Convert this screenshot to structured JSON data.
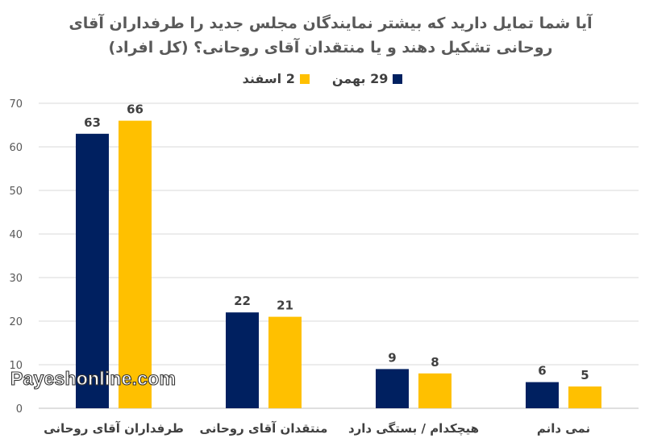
{
  "chart_data": {
    "type": "bar",
    "title_line1": "آیا شما تمایل دارید که بیشتر نمایندگان مجلس جدید را طرفداران آقای",
    "title_line2": "روحانی تشکیل دهند و یا منتقدان آقای روحانی؟ (کل افراد)",
    "categories": [
      "طرفداران آقای روحانی",
      "منتقدان آقای روحانی",
      "هیچکدام / بستگی دارد",
      "نمی دانم"
    ],
    "series": [
      {
        "name": "29 بهمن",
        "color": "#002060",
        "values": [
          63,
          22,
          9,
          6
        ]
      },
      {
        "name": "2 اسفند",
        "color": "#FFC000",
        "values": [
          66,
          21,
          8,
          5
        ]
      }
    ],
    "ylim": [
      0,
      70
    ],
    "yticks": [
      0,
      10,
      20,
      30,
      40,
      50,
      60,
      70
    ],
    "grid": true,
    "legend_position": "top",
    "xlabel": "",
    "ylabel": ""
  },
  "watermark": "Payeshonline.com"
}
